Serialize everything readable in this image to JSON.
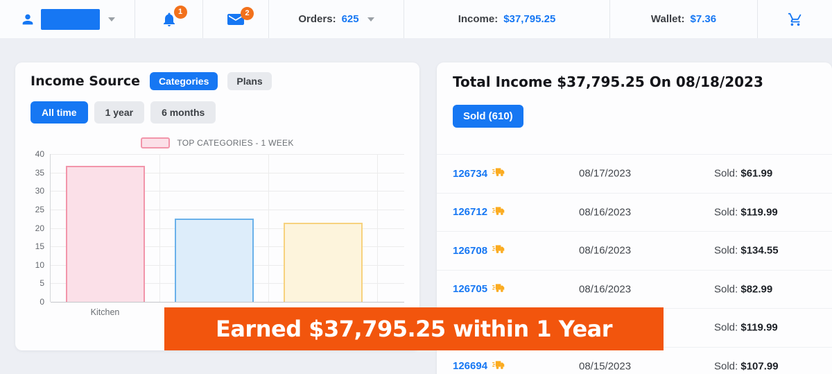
{
  "header": {
    "user": {
      "caret": "dropdown"
    },
    "notifications": {
      "badge": "1"
    },
    "messages": {
      "badge": "2"
    },
    "orders": {
      "label": "Orders:",
      "value": "625"
    },
    "income": {
      "label": "Income:",
      "value": "$37,795.25"
    },
    "wallet": {
      "label": "Wallet:",
      "value": "$7.36"
    }
  },
  "income_source": {
    "title": "Income Source",
    "tabs": [
      {
        "label": "Categories",
        "active": true
      },
      {
        "label": "Plans",
        "active": false
      }
    ],
    "filters": [
      {
        "label": "All time",
        "active": true
      },
      {
        "label": "1 year",
        "active": false
      },
      {
        "label": "6 months",
        "active": false
      }
    ]
  },
  "chart_data": {
    "type": "bar",
    "legend": "TOP CATEGORIES - 1 WEEK",
    "legend_position": "top",
    "categories": [
      "Kitchen",
      "",
      ""
    ],
    "values": [
      36.8,
      22.5,
      21.5
    ],
    "ylim": [
      0,
      40
    ],
    "yticks": [
      0,
      5,
      10,
      15,
      20,
      25,
      30,
      35,
      40
    ],
    "grid": true,
    "bar_styles": [
      {
        "fill": "#fbe0e8",
        "border": "#f295aa"
      },
      {
        "fill": "#ddedfa",
        "border": "#6ab1ea"
      },
      {
        "fill": "#fdf4dc",
        "border": "#f7d27e"
      }
    ]
  },
  "total_income": {
    "title": "Total Income $37,795.25 On 08/18/2023",
    "sold_button": "Sold (610)",
    "sold_label": "Sold:",
    "rows": [
      {
        "id": "126734",
        "date": "08/17/2023",
        "amount": "$61.99"
      },
      {
        "id": "126712",
        "date": "08/16/2023",
        "amount": "$119.99"
      },
      {
        "id": "126708",
        "date": "08/16/2023",
        "amount": "$134.55"
      },
      {
        "id": "126705",
        "date": "08/16/2023",
        "amount": "$82.99"
      },
      {
        "id": "",
        "date": "",
        "amount": "$119.99"
      },
      {
        "id": "126694",
        "date": "08/15/2023",
        "amount": "$107.99"
      }
    ]
  },
  "banner": {
    "text": "Earned $37,795.25 within 1 Year"
  },
  "colors": {
    "accent": "#1677f3",
    "banner": "#f2550d",
    "badge": "#f2711c",
    "truck": "#fbab1f",
    "page_bg": "#edeff4"
  }
}
